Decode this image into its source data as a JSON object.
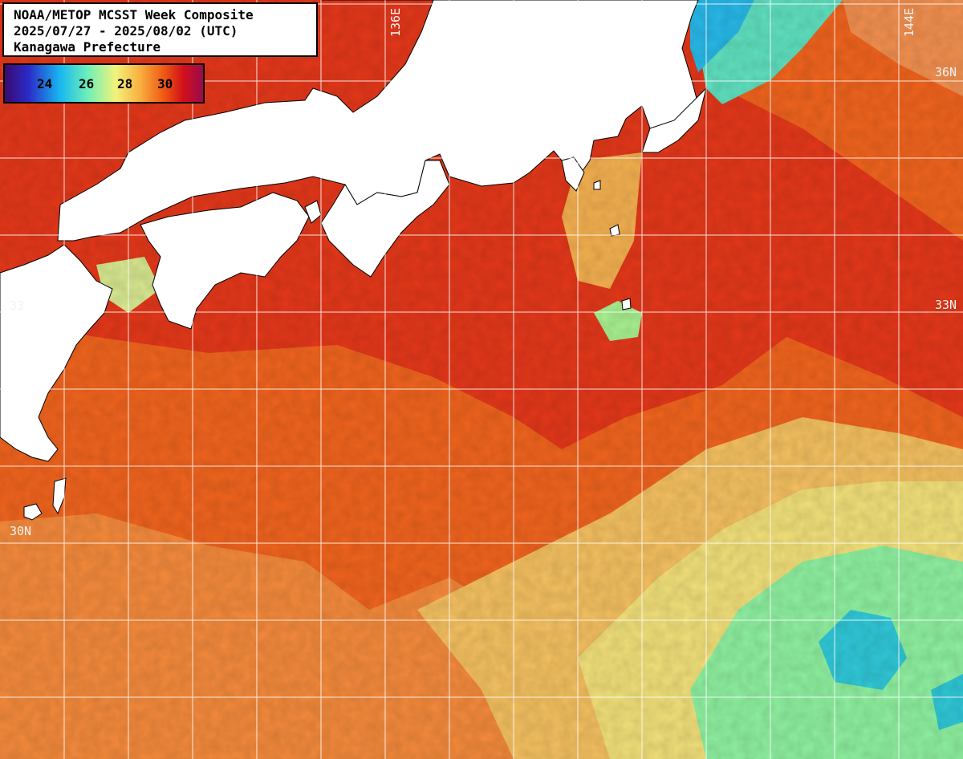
{
  "title": {
    "line1": "NOAA/METOP MCSST Week Composite",
    "line2": "2025/07/27 - 2025/08/02 (UTC)",
    "line3": "Kanagawa Prefecture"
  },
  "legend": {
    "labels": [
      "24",
      "26",
      "28",
      "30"
    ],
    "colors": [
      "#3a0a6e",
      "#2a2ac8",
      "#18b8f0",
      "#6ff0b8",
      "#f2f27a",
      "#f8b040",
      "#f05a14",
      "#d2101a",
      "#9a0a4e"
    ]
  },
  "grid_labels": {
    "lon_136": "136E",
    "lon_144": "144E",
    "lat_36": "36N",
    "lat_33": "33N",
    "lat_30": "30N",
    "lat_33_left": "33"
  },
  "colors": {
    "warm_sea": "#f05a1a",
    "hot_sea": "#e02a12",
    "mild_sea": "#f6a548",
    "cool_sea": "#f2e27a",
    "cold_sea": "#6fe8a8",
    "very_cold_sea": "#28c8e8",
    "land": "#ffffff",
    "grid": "#ffffff"
  }
}
